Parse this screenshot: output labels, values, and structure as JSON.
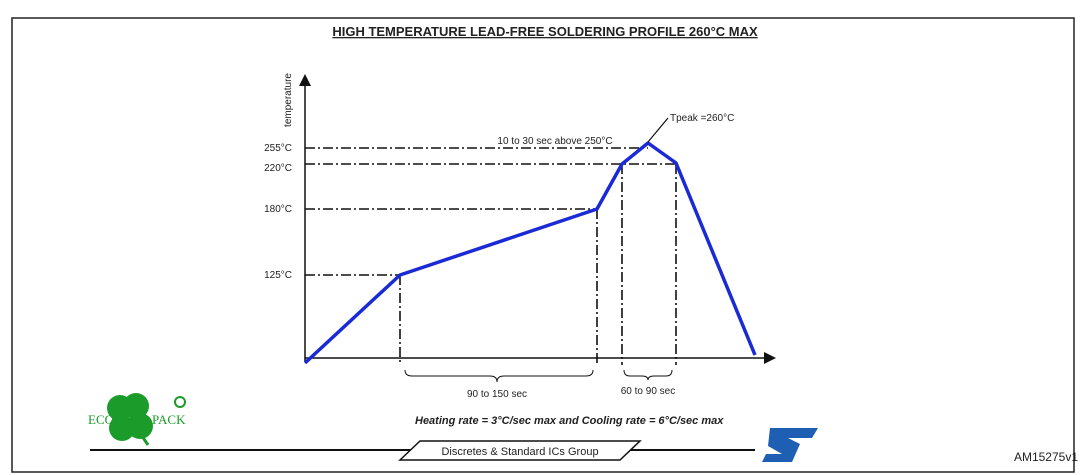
{
  "title": "HIGH TEMPERATURE LEAD-FREE SOLDERING PROFILE 260°C MAX",
  "y_axis_label": "temperature",
  "temperature_labels": [
    "255°C",
    "220°C",
    "180°C",
    "125°C"
  ],
  "annotations": {
    "above": "10 to 30 sec above 250°C",
    "peak": "Tpeak =260°C",
    "preheat": "90 to 150 sec",
    "reflow": "60 to 90 sec"
  },
  "logo": {
    "left": "ECO",
    "right": "PACK"
  },
  "rates": "Heating rate = 3°C/sec max and Cooling rate = 6°C/sec max",
  "group": "Discretes & Standard ICs Group",
  "code": "AM15275v1"
}
